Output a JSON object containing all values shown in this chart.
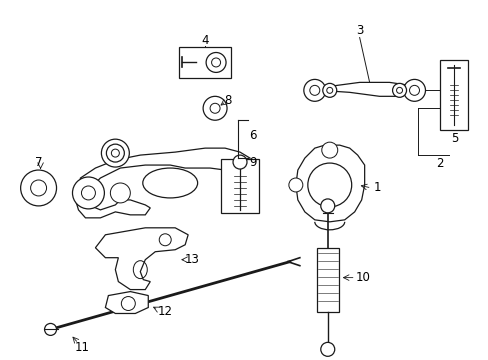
{
  "bg_color": "#ffffff",
  "line_color": "#1a1a1a",
  "fig_width": 4.89,
  "fig_height": 3.6,
  "dpi": 100
}
